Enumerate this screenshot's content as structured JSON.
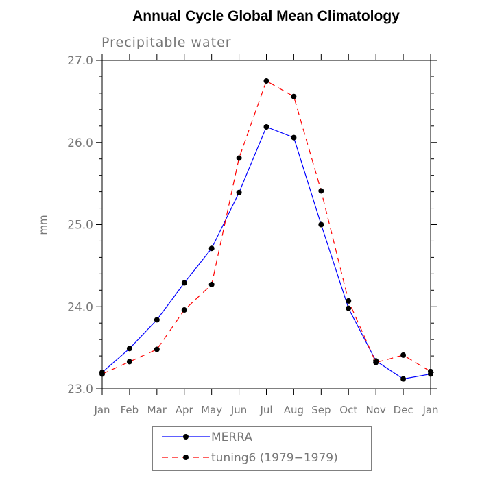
{
  "chart_data": {
    "type": "line",
    "title": "Annual Cycle Global Mean Climatology",
    "subtitle": "Precipitable water",
    "xlabel": "",
    "ylabel": "mm",
    "categories": [
      "Jan",
      "Feb",
      "Mar",
      "Apr",
      "May",
      "Jun",
      "Jul",
      "Aug",
      "Sep",
      "Oct",
      "Nov",
      "Dec",
      "Jan"
    ],
    "ylim": [
      23.0,
      27.0
    ],
    "yticks": [
      "23.0",
      "24.0",
      "25.0",
      "26.0",
      "27.0"
    ],
    "yminor_step": 0.2,
    "grid": false,
    "legend_position": "bottom",
    "series": [
      {
        "name": "MERRA",
        "color": "#0000ff",
        "dash": "solid",
        "marker": "filled-circle",
        "values": [
          23.2,
          23.49,
          23.84,
          24.29,
          24.71,
          25.39,
          26.19,
          26.06,
          25.0,
          23.98,
          23.34,
          23.12,
          23.18
        ]
      },
      {
        "name": "tuning6 (1979−1979)",
        "color": "#ff0000",
        "dash": "dashed",
        "marker": "filled-circle",
        "values": [
          23.18,
          23.33,
          23.48,
          23.96,
          24.27,
          25.81,
          26.75,
          26.56,
          25.41,
          24.07,
          23.32,
          23.41,
          23.21
        ]
      }
    ]
  }
}
